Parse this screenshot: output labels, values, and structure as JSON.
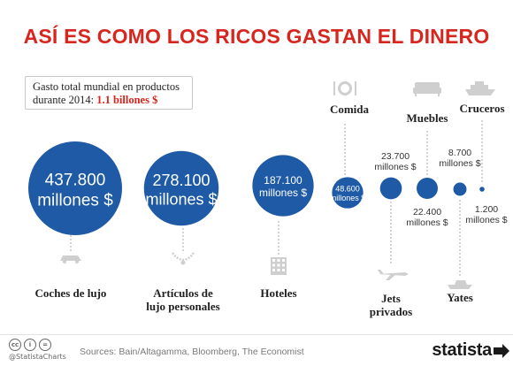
{
  "title": "ASÍ ES COMO LOS RICOS GASTAN EL DINERO",
  "info": {
    "line1": "Gasto total mundial en productos",
    "line2_prefix": "durante 2014: ",
    "line2_value": "1.1 billones $"
  },
  "colors": {
    "circle": "#1e5aa5",
    "accent": "#d7261e",
    "line": "#b8b8b8",
    "icon": "#cfcfcf"
  },
  "chart_data": {
    "type": "bubble",
    "unit": "millones $",
    "series": [
      {
        "category": "Coches de lujo",
        "value": 437800,
        "value_label": "437.800",
        "unit_label": "millones $",
        "icon": "car-icon"
      },
      {
        "category": "Artículos de lujo personales",
        "category_lines": [
          "Artículos de",
          "lujo personales"
        ],
        "value": 278100,
        "value_label": "278.100",
        "unit_label": "millones $",
        "icon": "necklace-icon"
      },
      {
        "category": "Hoteles",
        "value": 187100,
        "value_label": "187.100",
        "unit_label": "millones $",
        "icon": "hotel-icon"
      },
      {
        "category": "Comida",
        "value": 48600,
        "value_label": "48.600",
        "unit_label": "millones $",
        "icon": "plate-icon"
      },
      {
        "category": "Jets privados",
        "category_lines": [
          "Jets",
          "privados"
        ],
        "value": 23700,
        "value_label": "23.700",
        "unit_label": "millones $",
        "icon": "jet-icon"
      },
      {
        "category": "Muebles",
        "value": 22400,
        "value_label": "22.400",
        "unit_label": "millones $",
        "icon": "sofa-icon"
      },
      {
        "category": "Yates",
        "value": 8700,
        "value_label": "8.700",
        "unit_label": "millones $",
        "icon": "yacht-icon"
      },
      {
        "category": "Cruceros",
        "value": 1200,
        "value_label": "1.200",
        "unit_label": "millones $",
        "icon": "cruise-ship-icon"
      }
    ]
  },
  "footer": {
    "handle": "@StatistaCharts",
    "sources": "Sources: Bain/Altagamma, Bloomberg, The Economist",
    "brand": "statista"
  }
}
